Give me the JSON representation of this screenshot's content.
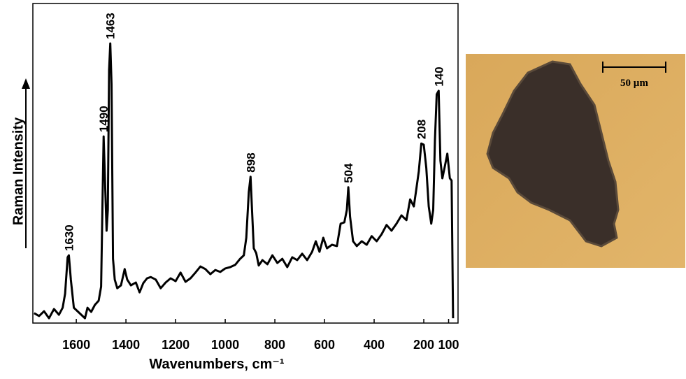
{
  "chart_data": {
    "type": "line",
    "xlabel": "Wavenumbers, cm⁻¹",
    "ylabel": "Raman Intensity",
    "color": "#000000",
    "x": [
      1770,
      1750,
      1730,
      1710,
      1690,
      1670,
      1655,
      1645,
      1635,
      1630,
      1622,
      1610,
      1595,
      1580,
      1565,
      1555,
      1540,
      1525,
      1510,
      1500,
      1495,
      1490,
      1485,
      1478,
      1473,
      1468,
      1463,
      1458,
      1452,
      1445,
      1435,
      1420,
      1405,
      1395,
      1380,
      1360,
      1345,
      1330,
      1315,
      1300,
      1280,
      1260,
      1240,
      1220,
      1200,
      1180,
      1160,
      1140,
      1120,
      1100,
      1080,
      1060,
      1040,
      1020,
      1000,
      980,
      960,
      940,
      925,
      915,
      905,
      898,
      892,
      885,
      875,
      865,
      850,
      830,
      810,
      790,
      770,
      750,
      730,
      710,
      690,
      670,
      650,
      635,
      620,
      605,
      590,
      570,
      550,
      535,
      520,
      510,
      504,
      497,
      485,
      470,
      450,
      430,
      410,
      390,
      370,
      350,
      330,
      310,
      290,
      270,
      255,
      240,
      230,
      220,
      210,
      200,
      190,
      180,
      170,
      162,
      155,
      148,
      140,
      133,
      125,
      115,
      105,
      95,
      88,
      82
    ],
    "values": [
      3.1,
      2.2,
      3.7,
      1.5,
      4.4,
      2.6,
      4.8,
      9.2,
      20.6,
      21.2,
      13.6,
      4.8,
      3.7,
      2.6,
      1.5,
      4.8,
      3.5,
      5.7,
      7.0,
      11.4,
      35.4,
      58.4,
      46.4,
      28.9,
      35.4,
      79.2,
      87.5,
      74.8,
      20.1,
      13.6,
      10.9,
      11.8,
      16.9,
      13.6,
      11.8,
      12.7,
      9.6,
      12.5,
      14.0,
      14.4,
      13.6,
      10.9,
      12.7,
      14.0,
      13.1,
      15.8,
      12.9,
      14.0,
      15.8,
      17.7,
      16.9,
      15.3,
      16.6,
      16.0,
      17.1,
      17.5,
      18.2,
      20.1,
      21.2,
      26.7,
      41.0,
      45.8,
      35.4,
      23.4,
      21.9,
      18.0,
      19.7,
      18.4,
      21.2,
      18.8,
      20.1,
      17.5,
      20.6,
      19.7,
      21.7,
      19.7,
      22.3,
      25.6,
      22.3,
      26.7,
      23.4,
      24.5,
      24.1,
      31.1,
      31.5,
      35.4,
      42.5,
      33.3,
      25.6,
      24.1,
      25.6,
      24.5,
      27.2,
      25.6,
      27.8,
      30.7,
      28.9,
      31.1,
      33.7,
      32.2,
      38.7,
      36.5,
      42.0,
      47.5,
      56.2,
      55.8,
      48.6,
      36.5,
      31.1,
      35.4,
      57.4,
      71.6,
      72.7,
      50.8,
      45.3,
      49.1,
      53.0,
      45.3,
      44.6,
      1.5
    ],
    "xlim": [
      1775,
      62
    ],
    "xticks": [
      1600,
      1400,
      1200,
      1000,
      800,
      600,
      400,
      200,
      100
    ],
    "ylim": [
      0,
      100
    ],
    "annotations": [
      {
        "text": "1630",
        "x": 1630
      },
      {
        "text": "1490",
        "x": 1490
      },
      {
        "text": "1463",
        "x": 1463
      },
      {
        "text": "898",
        "x": 898
      },
      {
        "text": "504",
        "x": 504
      },
      {
        "text": "208",
        "x": 210
      },
      {
        "text": "140",
        "x": 140
      }
    ]
  },
  "micrograph": {
    "scale_label": "50 µm"
  }
}
